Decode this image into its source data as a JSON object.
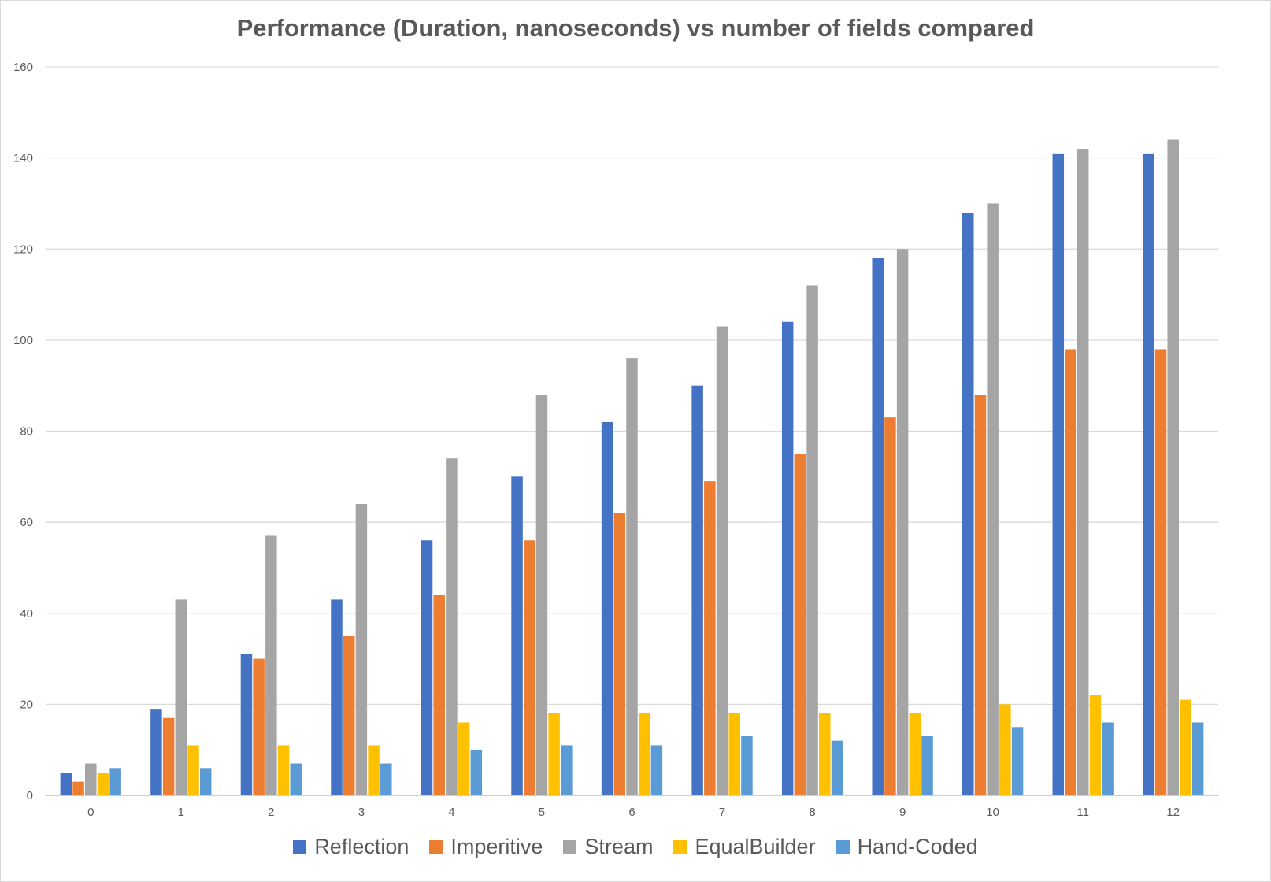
{
  "chart_data": {
    "type": "bar",
    "title": "Performance (Duration, nanoseconds) vs number of fields compared",
    "xlabel": "",
    "ylabel": "",
    "ylim": [
      0,
      160
    ],
    "yticks": [
      0,
      20,
      40,
      60,
      80,
      100,
      120,
      140,
      160
    ],
    "grid": true,
    "legend_position": "bottom",
    "categories": [
      "0",
      "1",
      "2",
      "3",
      "4",
      "5",
      "6",
      "7",
      "8",
      "9",
      "10",
      "11",
      "12"
    ],
    "series": [
      {
        "name": "Reflection",
        "color": "#4472c4",
        "values": [
          5,
          19,
          31,
          43,
          56,
          70,
          82,
          90,
          104,
          118,
          128,
          141,
          141
        ]
      },
      {
        "name": "Imperitive",
        "color": "#ed7d31",
        "values": [
          3,
          17,
          30,
          35,
          44,
          56,
          62,
          69,
          75,
          83,
          88,
          98,
          98
        ]
      },
      {
        "name": "Stream",
        "color": "#a5a5a5",
        "values": [
          7,
          43,
          57,
          64,
          74,
          88,
          96,
          103,
          112,
          120,
          130,
          142,
          144
        ]
      },
      {
        "name": "EqualBuilder",
        "color": "#ffc000",
        "values": [
          5,
          11,
          11,
          11,
          16,
          18,
          18,
          18,
          18,
          18,
          20,
          22,
          21
        ]
      },
      {
        "name": "Hand-Coded",
        "color": "#5b9bd5",
        "values": [
          6,
          6,
          7,
          7,
          10,
          11,
          11,
          13,
          12,
          13,
          15,
          16,
          16
        ]
      }
    ]
  }
}
